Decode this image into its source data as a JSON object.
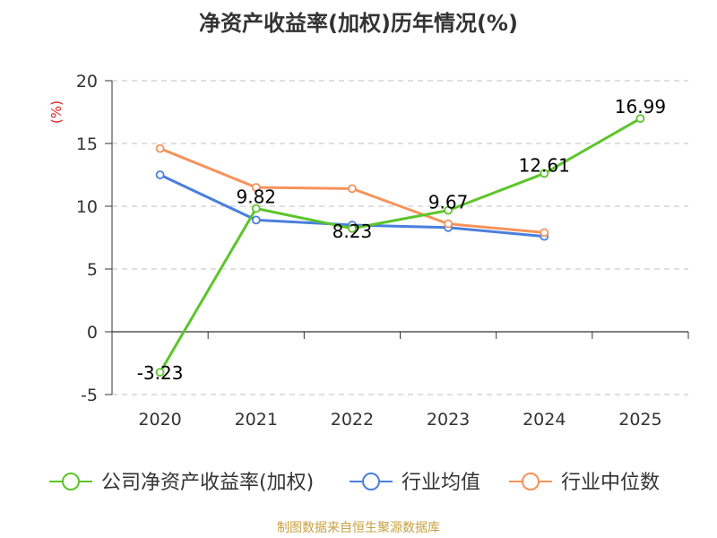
{
  "chart_data": {
    "type": "line",
    "title": "净资产收益率(加权)历年情况(%)",
    "ylabel": "(%)",
    "xlabel": "",
    "categories": [
      "2020",
      "2021",
      "2022",
      "2023",
      "2024",
      "2025"
    ],
    "ylim": [
      -5,
      20
    ],
    "yticks": [
      -5,
      0,
      5,
      10,
      15,
      20
    ],
    "grid": true,
    "legend_position": "bottom",
    "series": [
      {
        "name": "公司净资产收益率(加权)",
        "color": "#5cc52a",
        "values": [
          -3.23,
          9.82,
          8.23,
          9.67,
          12.61,
          16.99
        ],
        "labels": [
          "-3.23",
          "9.82",
          "8.23",
          "9.67",
          "12.61",
          "16.99"
        ]
      },
      {
        "name": "行业均值",
        "color": "#4a7fdc",
        "values": [
          12.5,
          8.9,
          8.5,
          8.3,
          7.6,
          null
        ],
        "labels": []
      },
      {
        "name": "行业中位数",
        "color": "#f7925a",
        "values": [
          14.6,
          11.5,
          11.4,
          8.6,
          7.9,
          null
        ],
        "labels": []
      }
    ]
  },
  "unit_color": "#e02020",
  "source": "制图数据来自恒生聚源数据库"
}
